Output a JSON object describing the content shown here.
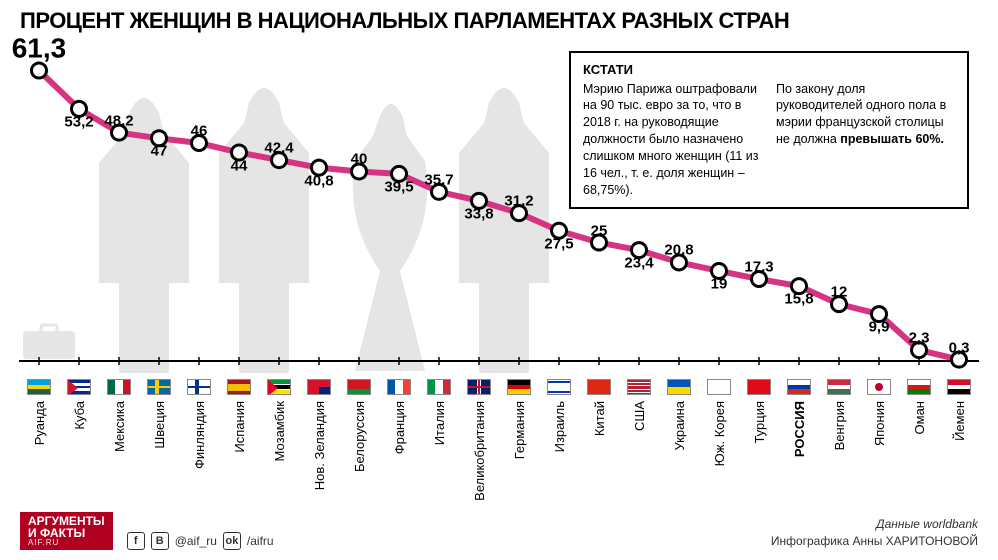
{
  "title": "ПРОЦЕНТ ЖЕНЩИН В НАЦИОНАЛЬНЫХ ПАРЛАМЕНТАХ РАЗНЫХ СТРАН",
  "chart": {
    "type": "line",
    "line_color": "#d63384",
    "line_width": 6,
    "marker_outer": "#000000",
    "marker_inner": "#ffffff",
    "marker_outer_r": 9,
    "marker_inner_r": 6,
    "background": "#ffffff",
    "xbaseline_color": "#000000",
    "ymax": 65,
    "ymin": 0,
    "points": [
      {
        "country": "Руанда",
        "value": 61.3,
        "pos": "above",
        "bold": false,
        "flag": [
          [
            "h",
            "#00a1de",
            0,
            0.33
          ],
          [
            "h",
            "#fad201",
            0.33,
            0.33
          ],
          [
            "h",
            "#20603d",
            0.66,
            0.34
          ]
        ]
      },
      {
        "country": "Куба",
        "value": 53.2,
        "pos": "below",
        "bold": false,
        "flag": [
          [
            "h",
            "#002a8f",
            0,
            0.2
          ],
          [
            "h",
            "#ffffff",
            0.2,
            0.2
          ],
          [
            "h",
            "#002a8f",
            0.4,
            0.2
          ],
          [
            "h",
            "#ffffff",
            0.6,
            0.2
          ],
          [
            "h",
            "#002a8f",
            0.8,
            0.2
          ],
          [
            "tri",
            "#cf142b"
          ]
        ]
      },
      {
        "country": "Мексика",
        "value": 48.2,
        "pos": "above",
        "bold": false,
        "flag": [
          [
            "v",
            "#006847",
            0,
            0.33
          ],
          [
            "v",
            "#ffffff",
            0.33,
            0.34
          ],
          [
            "v",
            "#ce1126",
            0.67,
            0.33
          ]
        ]
      },
      {
        "country": "Швеция",
        "value": 47,
        "pos": "below",
        "bold": false,
        "flag": [
          [
            "bg",
            "#006aa7"
          ],
          [
            "v",
            "#fecc00",
            0.3,
            0.18
          ],
          [
            "h",
            "#fecc00",
            0.4,
            0.2
          ]
        ]
      },
      {
        "country": "Финляндия",
        "value": 46,
        "pos": "above",
        "bold": false,
        "flag": [
          [
            "bg",
            "#ffffff"
          ],
          [
            "v",
            "#003580",
            0.3,
            0.18
          ],
          [
            "h",
            "#003580",
            0.4,
            0.2
          ]
        ]
      },
      {
        "country": "Испания",
        "value": 44,
        "pos": "below",
        "bold": false,
        "flag": [
          [
            "h",
            "#aa151b",
            0,
            0.25
          ],
          [
            "h",
            "#f1bf00",
            0.25,
            0.5
          ],
          [
            "h",
            "#aa151b",
            0.75,
            0.25
          ]
        ]
      },
      {
        "country": "Мозамбик",
        "value": 42.4,
        "pos": "above",
        "bold": false,
        "flag": [
          [
            "h",
            "#009639",
            0,
            0.28
          ],
          [
            "h",
            "#ffffff",
            0.28,
            0.06
          ],
          [
            "h",
            "#000000",
            0.34,
            0.32
          ],
          [
            "h",
            "#ffffff",
            0.66,
            0.06
          ],
          [
            "h",
            "#ffe100",
            0.72,
            0.28
          ],
          [
            "tri",
            "#e4002b"
          ]
        ]
      },
      {
        "country": "Нов. Зеландия",
        "value": 40.8,
        "pos": "below",
        "bold": false,
        "flag": [
          [
            "bg",
            "#00247d"
          ],
          [
            "h",
            "#cf142b",
            0,
            0.5
          ],
          [
            "v",
            "#cf142b",
            0,
            0.5
          ]
        ]
      },
      {
        "country": "Белоруссия",
        "value": 40,
        "pos": "above",
        "bold": false,
        "flag": [
          [
            "v",
            "#ce1720",
            0,
            0.15
          ],
          [
            "h",
            "#009739",
            0.67,
            0.33
          ],
          [
            "h",
            "#ce1720",
            0,
            0.67
          ]
        ]
      },
      {
        "country": "Франция",
        "value": 39.5,
        "pos": "below",
        "bold": false,
        "flag": [
          [
            "v",
            "#0055a4",
            0,
            0.33
          ],
          [
            "v",
            "#ffffff",
            0.33,
            0.34
          ],
          [
            "v",
            "#ef4135",
            0.67,
            0.33
          ]
        ]
      },
      {
        "country": "Италия",
        "value": 35.7,
        "pos": "above",
        "bold": false,
        "flag": [
          [
            "v",
            "#009246",
            0,
            0.33
          ],
          [
            "v",
            "#ffffff",
            0.33,
            0.34
          ],
          [
            "v",
            "#ce2b37",
            0.67,
            0.33
          ]
        ]
      },
      {
        "country": "Великобритания",
        "value": 33.8,
        "pos": "below",
        "bold": false,
        "flag": [
          [
            "bg",
            "#012169"
          ],
          [
            "h",
            "#ffffff",
            0.4,
            0.2
          ],
          [
            "v",
            "#ffffff",
            0.4,
            0.2
          ],
          [
            "h",
            "#c8102e",
            0.45,
            0.1
          ],
          [
            "v",
            "#c8102e",
            0.45,
            0.1
          ]
        ]
      },
      {
        "country": "Германия",
        "value": 31.2,
        "pos": "above",
        "bold": false,
        "flag": [
          [
            "h",
            "#000000",
            0,
            0.33
          ],
          [
            "h",
            "#dd0000",
            0.33,
            0.34
          ],
          [
            "h",
            "#ffce00",
            0.67,
            0.33
          ]
        ]
      },
      {
        "country": "Израиль",
        "value": 27.5,
        "pos": "below",
        "bold": false,
        "flag": [
          [
            "bg",
            "#ffffff"
          ],
          [
            "h",
            "#0038b8",
            0.1,
            0.15
          ],
          [
            "h",
            "#0038b8",
            0.75,
            0.15
          ]
        ]
      },
      {
        "country": "Китай",
        "value": 25,
        "pos": "above",
        "bold": false,
        "flag": [
          [
            "bg",
            "#de2910"
          ]
        ]
      },
      {
        "country": "США",
        "value": 23.4,
        "pos": "below",
        "bold": false,
        "flag": [
          [
            "bg",
            "#b22234"
          ],
          [
            "h",
            "#ffffff",
            0.15,
            0.08
          ],
          [
            "h",
            "#ffffff",
            0.38,
            0.08
          ],
          [
            "h",
            "#ffffff",
            0.62,
            0.08
          ],
          [
            "h",
            "#ffffff",
            0.85,
            0.08
          ]
        ]
      },
      {
        "country": "Украина",
        "value": 20.8,
        "pos": "above",
        "bold": false,
        "flag": [
          [
            "h",
            "#0057b7",
            0,
            0.5
          ],
          [
            "h",
            "#ffd700",
            0.5,
            0.5
          ]
        ]
      },
      {
        "country": "Юж. Корея",
        "value": 19,
        "pos": "below",
        "bold": false,
        "flag": [
          [
            "bg",
            "#ffffff"
          ]
        ]
      },
      {
        "country": "Турция",
        "value": 17.3,
        "pos": "above",
        "bold": false,
        "flag": [
          [
            "bg",
            "#e30a17"
          ]
        ]
      },
      {
        "country": "РОССИЯ",
        "value": 15.8,
        "pos": "below",
        "bold": true,
        "flag": [
          [
            "h",
            "#ffffff",
            0,
            0.33
          ],
          [
            "h",
            "#0039a6",
            0.33,
            0.34
          ],
          [
            "h",
            "#d52b1e",
            0.67,
            0.33
          ]
        ]
      },
      {
        "country": "Венгрия",
        "value": 12,
        "pos": "above",
        "bold": false,
        "flag": [
          [
            "h",
            "#cd2a3e",
            0,
            0.33
          ],
          [
            "h",
            "#ffffff",
            0.33,
            0.34
          ],
          [
            "h",
            "#436f4d",
            0.67,
            0.33
          ]
        ]
      },
      {
        "country": "Япония",
        "value": 9.9,
        "pos": "below",
        "bold": false,
        "flag": [
          [
            "bg",
            "#ffffff"
          ],
          [
            "dot",
            "#bc002d"
          ]
        ]
      },
      {
        "country": "Оман",
        "value": 2.3,
        "pos": "above",
        "bold": false,
        "flag": [
          [
            "v",
            "#db161b",
            0,
            0.25
          ],
          [
            "h",
            "#ffffff",
            0,
            0.33
          ],
          [
            "h",
            "#db161b",
            0.33,
            0.34
          ],
          [
            "h",
            "#008000",
            0.67,
            0.33
          ]
        ]
      },
      {
        "country": "Йемен",
        "value": 0.3,
        "pos": "above",
        "bold": false,
        "flag": [
          [
            "h",
            "#ce1126",
            0,
            0.33
          ],
          [
            "h",
            "#ffffff",
            0.33,
            0.34
          ],
          [
            "h",
            "#000000",
            0.67,
            0.33
          ]
        ]
      }
    ]
  },
  "aside": {
    "title": "КСТАТИ",
    "col1": "Мэрию Парижа оштрафовали на 90 тыс. евро за то, что в 2018 г. на руководящие должности было назначено слишком много женщин (11 из 16 чел., т. е. доля женщин – 68,75%).",
    "col2_pre": "По закону доля руководителей одного пола в мэрии французской столицы не должна ",
    "col2_bold": "превышать 60%."
  },
  "footer": {
    "logo_top": "АРГУМЕНТЫ",
    "logo_bottom": "И ФАКТЫ",
    "logo_url": "AIF.RU",
    "social_handles": [
      "fb",
      "vk",
      "@aif_ru",
      "ok"
    ],
    "source": "Данные worldbank",
    "credit": "Инфографика Анны ХАРИТОНОВОЙ"
  }
}
